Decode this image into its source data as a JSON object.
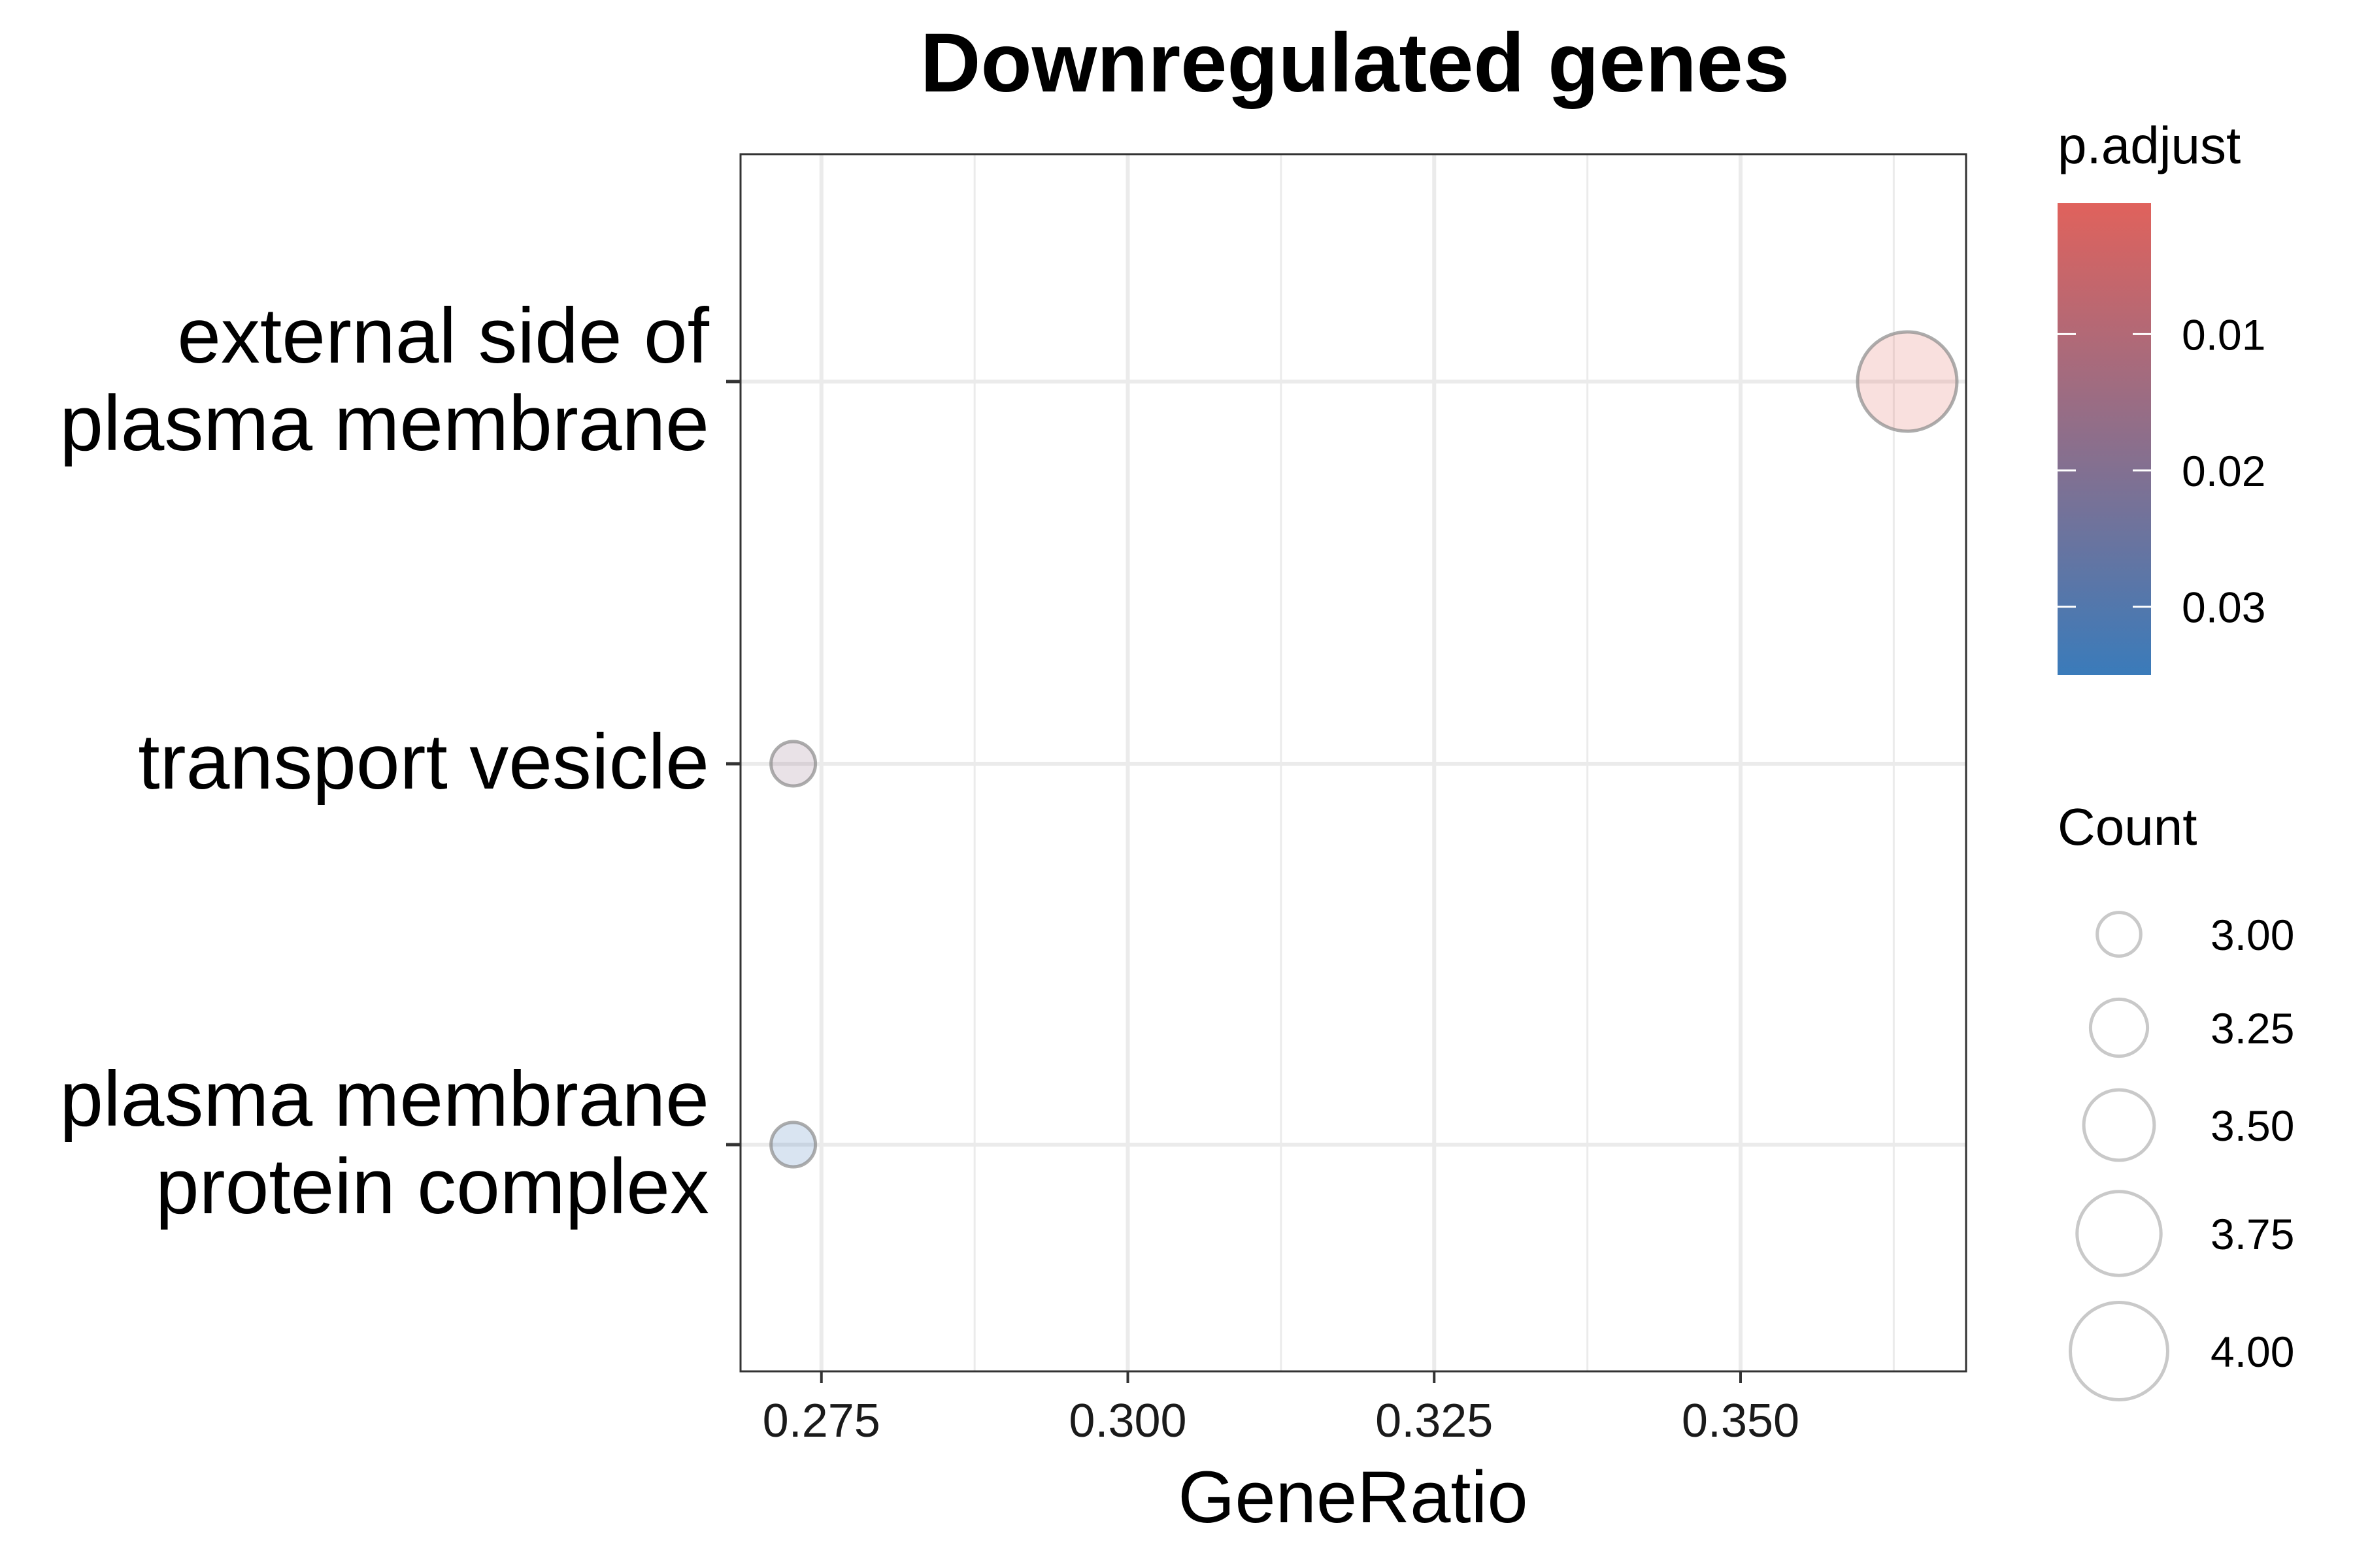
{
  "chart_data": {
    "type": "scatter",
    "title": "Downregulated genes",
    "xlabel": "GeneRatio",
    "ylabel": "",
    "xlim": [
      0.2684,
      0.3684
    ],
    "x_ticks": [
      0.275,
      0.3,
      0.325,
      0.35
    ],
    "x_tick_labels": [
      "0.275",
      "0.300",
      "0.325",
      "0.350"
    ],
    "categories": [
      "external side of plasma membrane",
      "transport vesicle",
      "plasma membrane protein complex"
    ],
    "category_label_lines": [
      [
        "external side of",
        "plasma membrane"
      ],
      [
        "transport vesicle"
      ],
      [
        "plasma membrane",
        "protein complex"
      ]
    ],
    "points": [
      {
        "category": "external side of plasma membrane",
        "x": 0.3636,
        "count": 4,
        "p_adjust": 0.0004
      },
      {
        "category": "transport vesicle",
        "x": 0.2727,
        "count": 3,
        "p_adjust": 0.017
      },
      {
        "category": "plasma membrane protein complex",
        "x": 0.2727,
        "count": 3,
        "p_adjust": 0.034
      }
    ],
    "grid": true,
    "colorbar": {
      "title": "p.adjust",
      "range": [
        0.0004,
        0.035
      ],
      "ticks": [
        0.01,
        0.02,
        0.03
      ],
      "tick_labels": [
        "0.01",
        "0.02",
        "0.03"
      ],
      "low_color": "#E0625C",
      "high_color": "#3A7BBA",
      "position": "right"
    },
    "size_legend": {
      "title": "Count",
      "range": [
        3,
        4
      ],
      "values": [
        3.0,
        3.25,
        3.5,
        3.75,
        4.0
      ],
      "labels": [
        "3.00",
        "3.25",
        "3.50",
        "3.75",
        "4.00"
      ],
      "position": "right"
    },
    "point_alpha": 0.2
  }
}
